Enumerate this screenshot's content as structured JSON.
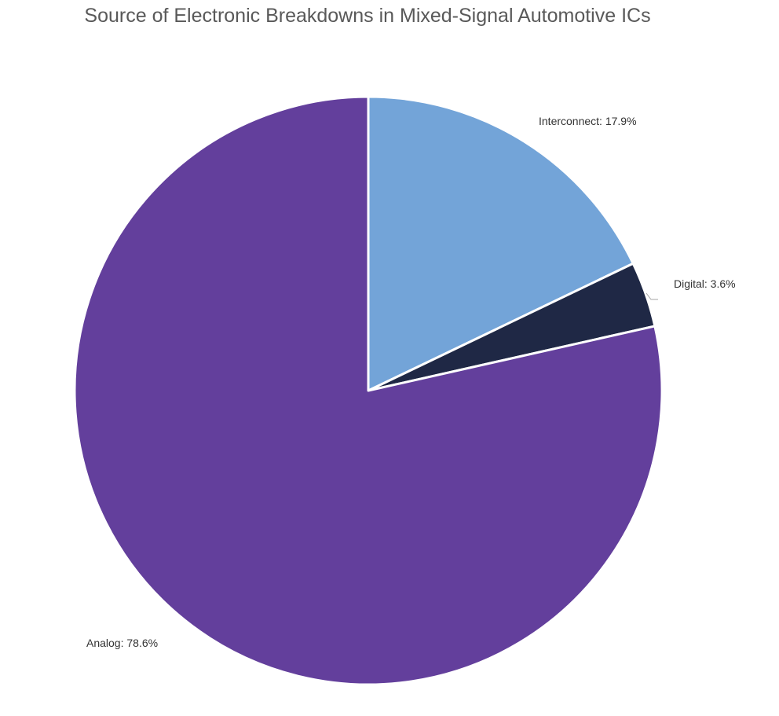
{
  "chart_data": {
    "type": "pie",
    "title": "Source of Electronic Breakdowns in Mixed-Signal Automotive ICs",
    "slices": [
      {
        "name": "Interconnect",
        "value": 17.9,
        "label": "Interconnect: 17.9%",
        "color": "#73A4D8"
      },
      {
        "name": "Digital",
        "value": 3.6,
        "label": "Digital: 3.6%",
        "color": "#1F2845"
      },
      {
        "name": "Analog",
        "value": 78.6,
        "label": "Analog: 78.6%",
        "color": "#633F9C"
      }
    ],
    "start_angle": "12 o'clock",
    "direction": "clockwise",
    "slice_border_color": "#FFFFFF",
    "leader_line_color": "#A6A6A6"
  }
}
